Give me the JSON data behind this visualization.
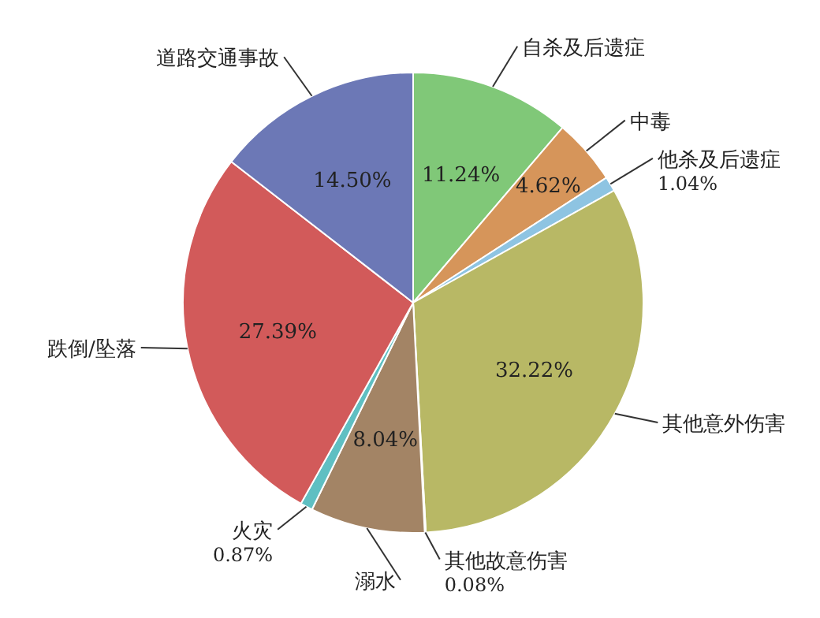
{
  "chart_data": {
    "type": "pie",
    "categories": [
      "自杀及后遗症",
      "中毒",
      "他杀及后遗症",
      "其他意外伤害",
      "其他故意伤害",
      "溺水",
      "火灾",
      "跌倒/坠落",
      "道路交通事故"
    ],
    "values": [
      11.24,
      4.62,
      1.04,
      32.22,
      0.08,
      8.04,
      0.87,
      27.39,
      14.5
    ],
    "colors": [
      "#80c878",
      "#d6955a",
      "#8ec4e2",
      "#b8b865",
      "#9a9a9a",
      "#a38465",
      "#5fbfc2",
      "#d25a5a",
      "#6c78b6"
    ],
    "value_labels": [
      "11.24%",
      "4.62%",
      "1.04%",
      "32.22%",
      "0.08%",
      "8.04%",
      "0.87%",
      "27.39%",
      "14.50%"
    ]
  }
}
